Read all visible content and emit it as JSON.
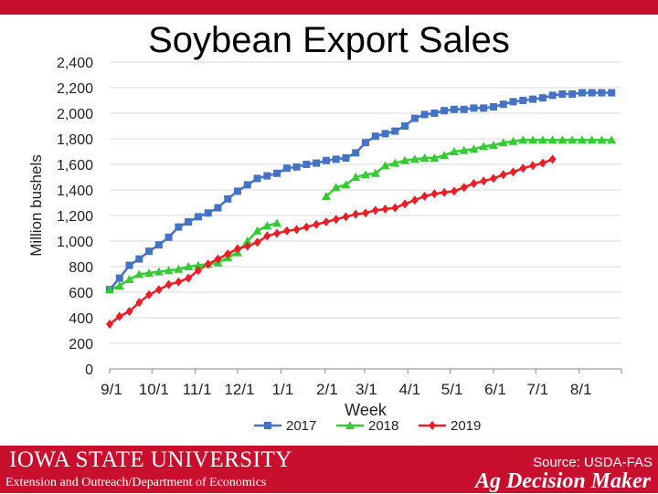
{
  "slide": {
    "title": "Soybean Export Sales"
  },
  "footer": {
    "university": "IOWA STATE UNIVERSITY",
    "department": "Extension and Outreach/Department of Economics",
    "source": "Source: USDA-FAS",
    "brand": "Ag Decision Maker",
    "color": "#c8102e"
  },
  "chart_data": {
    "type": "line",
    "title": "Soybean Export Sales",
    "xlabel": "Week",
    "ylabel": "Million bushels",
    "ylim": [
      0,
      2400
    ],
    "yticks": [
      "0",
      "200",
      "400",
      "600",
      "800",
      "1,000",
      "1,200",
      "1,400",
      "1,600",
      "1,800",
      "2,000",
      "2,200",
      "2,400"
    ],
    "xtick_labels": [
      "9/1",
      "10/1",
      "11/1",
      "12/1",
      "1/1",
      "2/1",
      "3/1",
      "4/1",
      "5/1",
      "6/1",
      "7/1",
      "8/1"
    ],
    "grid": true,
    "legend": "bottom",
    "series": [
      {
        "name": "2017",
        "color": "#4472c4",
        "marker": "square",
        "start_week": 0,
        "values": [
          620,
          710,
          810,
          860,
          920,
          970,
          1030,
          1110,
          1150,
          1190,
          1220,
          1260,
          1330,
          1390,
          1440,
          1490,
          1510,
          1530,
          1570,
          1580,
          1600,
          1610,
          1630,
          1640,
          1650,
          1690,
          1770,
          1820,
          1840,
          1860,
          1900,
          1960,
          1990,
          2000,
          2020,
          2030,
          2030,
          2040,
          2040,
          2050,
          2070,
          2090,
          2100,
          2110,
          2120,
          2140,
          2150,
          2150,
          2160,
          2160,
          2160,
          2160
        ]
      },
      {
        "name": "2018",
        "color": "#33cc33",
        "marker": "triangle",
        "segments": [
          {
            "start_week": 0,
            "values": [
              620,
              650,
              700,
              740,
              750,
              760,
              770,
              780,
              800,
              810,
              820,
              830,
              870,
              910,
              1000,
              1080,
              1120,
              1140
            ]
          },
          {
            "start_week": 22,
            "values": [
              1350,
              1420,
              1440,
              1500,
              1520,
              1530,
              1590,
              1610,
              1630,
              1640,
              1650,
              1650,
              1670,
              1700,
              1710,
              1720,
              1740,
              1750,
              1770,
              1780,
              1790,
              1790,
              1790,
              1790,
              1790,
              1790,
              1790,
              1790,
              1790,
              1790
            ]
          }
        ]
      },
      {
        "name": "2019",
        "color": "#ee1c24",
        "marker": "diamond",
        "start_week": 0,
        "values": [
          350,
          410,
          450,
          520,
          580,
          620,
          660,
          680,
          710,
          770,
          820,
          860,
          900,
          940,
          960,
          990,
          1040,
          1060,
          1080,
          1090,
          1110,
          1130,
          1150,
          1170,
          1190,
          1210,
          1220,
          1240,
          1250,
          1260,
          1290,
          1320,
          1350,
          1370,
          1380,
          1390,
          1420,
          1450,
          1470,
          1490,
          1520,
          1540,
          1570,
          1590,
          1610,
          1640
        ]
      }
    ]
  }
}
